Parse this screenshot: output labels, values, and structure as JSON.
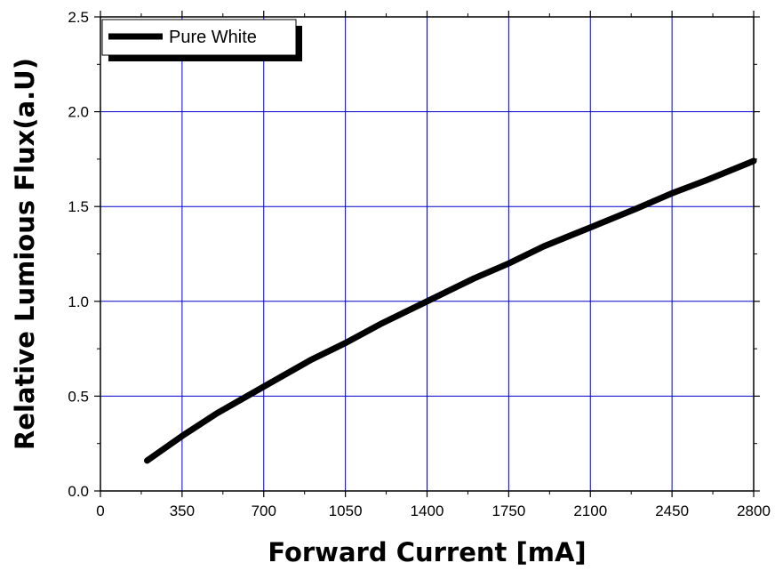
{
  "chart_data": {
    "type": "line",
    "title": "",
    "xlabel": "Forward Current [mA]",
    "ylabel": "Relative Lumious Flux(a.U)",
    "xlim": [
      0,
      2800
    ],
    "ylim": [
      0,
      2.5
    ],
    "x_ticks": [
      "0",
      "350",
      "700",
      "1050",
      "1400",
      "1750",
      "2100",
      "2450",
      "2800"
    ],
    "y_ticks": [
      "0.0",
      "0.5",
      "1.0",
      "1.5",
      "2.0",
      "2.5"
    ],
    "grid": true,
    "legend_position": "top-left",
    "colors": {
      "series": "#000000",
      "grid": "#0000cc",
      "axes": "#000000"
    },
    "series": [
      {
        "name": "Pure White",
        "x": [
          200,
          350,
          500,
          700,
          900,
          1050,
          1200,
          1400,
          1600,
          1750,
          1900,
          2100,
          2300,
          2450,
          2600,
          2800
        ],
        "y": [
          0.16,
          0.29,
          0.41,
          0.55,
          0.69,
          0.78,
          0.88,
          1.0,
          1.12,
          1.2,
          1.29,
          1.39,
          1.49,
          1.57,
          1.64,
          1.74
        ]
      }
    ]
  }
}
